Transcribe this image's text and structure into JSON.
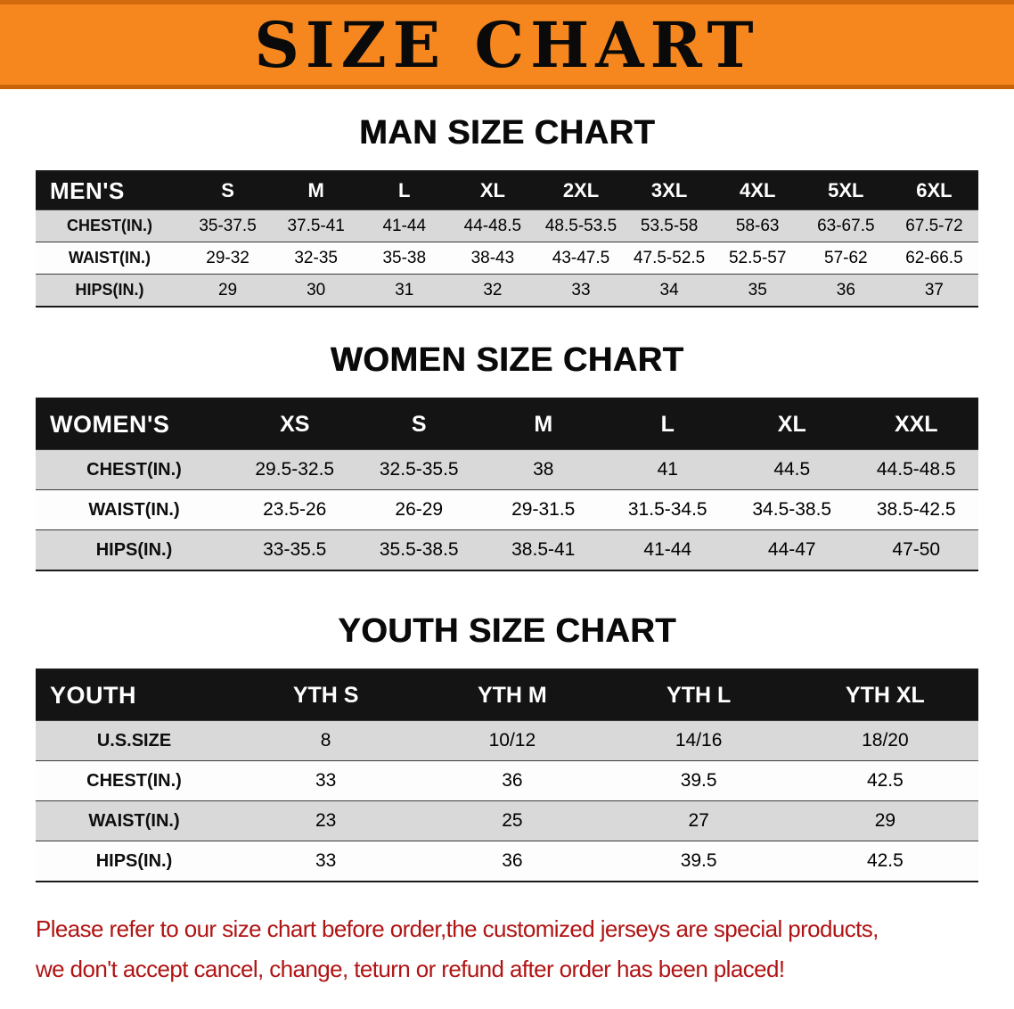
{
  "banner": {
    "title": "SIZE CHART"
  },
  "sections": [
    {
      "heading": "MAN SIZE CHART",
      "table": {
        "header": [
          "MEN'S",
          "S",
          "M",
          "L",
          "XL",
          "2XL",
          "3XL",
          "4XL",
          "5XL",
          "6XL"
        ],
        "rows": [
          {
            "label": "CHEST(IN.)",
            "values": [
              "35-37.5",
              "37.5-41",
              "41-44",
              "44-48.5",
              "48.5-53.5",
              "53.5-58",
              "58-63",
              "63-67.5",
              "67.5-72"
            ]
          },
          {
            "label": "WAIST(IN.)",
            "values": [
              "29-32",
              "32-35",
              "35-38",
              "38-43",
              "43-47.5",
              "47.5-52.5",
              "52.5-57",
              "57-62",
              "62-66.5"
            ]
          },
          {
            "label": "HIPS(IN.)",
            "values": [
              "29",
              "30",
              "31",
              "32",
              "33",
              "34",
              "35",
              "36",
              "37"
            ]
          }
        ]
      }
    },
    {
      "heading": "WOMEN SIZE CHART",
      "table": {
        "header": [
          "WOMEN'S",
          "XS",
          "S",
          "M",
          "L",
          "XL",
          "XXL"
        ],
        "rows": [
          {
            "label": "CHEST(IN.)",
            "values": [
              "29.5-32.5",
              "32.5-35.5",
              "38",
              "41",
              "44.5",
              "44.5-48.5"
            ]
          },
          {
            "label": "WAIST(IN.)",
            "values": [
              "23.5-26",
              "26-29",
              "29-31.5",
              "31.5-34.5",
              "34.5-38.5",
              "38.5-42.5"
            ]
          },
          {
            "label": "HIPS(IN.)",
            "values": [
              "33-35.5",
              "35.5-38.5",
              "38.5-41",
              "41-44",
              "44-47",
              "47-50"
            ]
          }
        ]
      }
    },
    {
      "heading": "YOUTH SIZE CHART",
      "table": {
        "header": [
          "YOUTH",
          "YTH S",
          "YTH M",
          "YTH L",
          "YTH XL"
        ],
        "rows": [
          {
            "label": "U.S.SIZE",
            "values": [
              "8",
              "10/12",
              "14/16",
              "18/20"
            ]
          },
          {
            "label": "CHEST(IN.)",
            "values": [
              "33",
              "36",
              "39.5",
              "42.5"
            ]
          },
          {
            "label": "WAIST(IN.)",
            "values": [
              "23",
              "25",
              "27",
              "29"
            ]
          },
          {
            "label": "HIPS(IN.)",
            "values": [
              "33",
              "36",
              "39.5",
              "42.5"
            ]
          }
        ]
      }
    }
  ],
  "footer": {
    "line1": "Please refer to our size chart before order,the customized jerseys are special products,",
    "line2": "we don't accept cancel, change, teturn or refund after order has been placed!"
  },
  "colors": {
    "banner_orange": "#f6871f",
    "header_black": "#141414",
    "row_gray": "#d9d9d9",
    "row_white": "#fdfdfd",
    "footer_red": "#b11414"
  }
}
